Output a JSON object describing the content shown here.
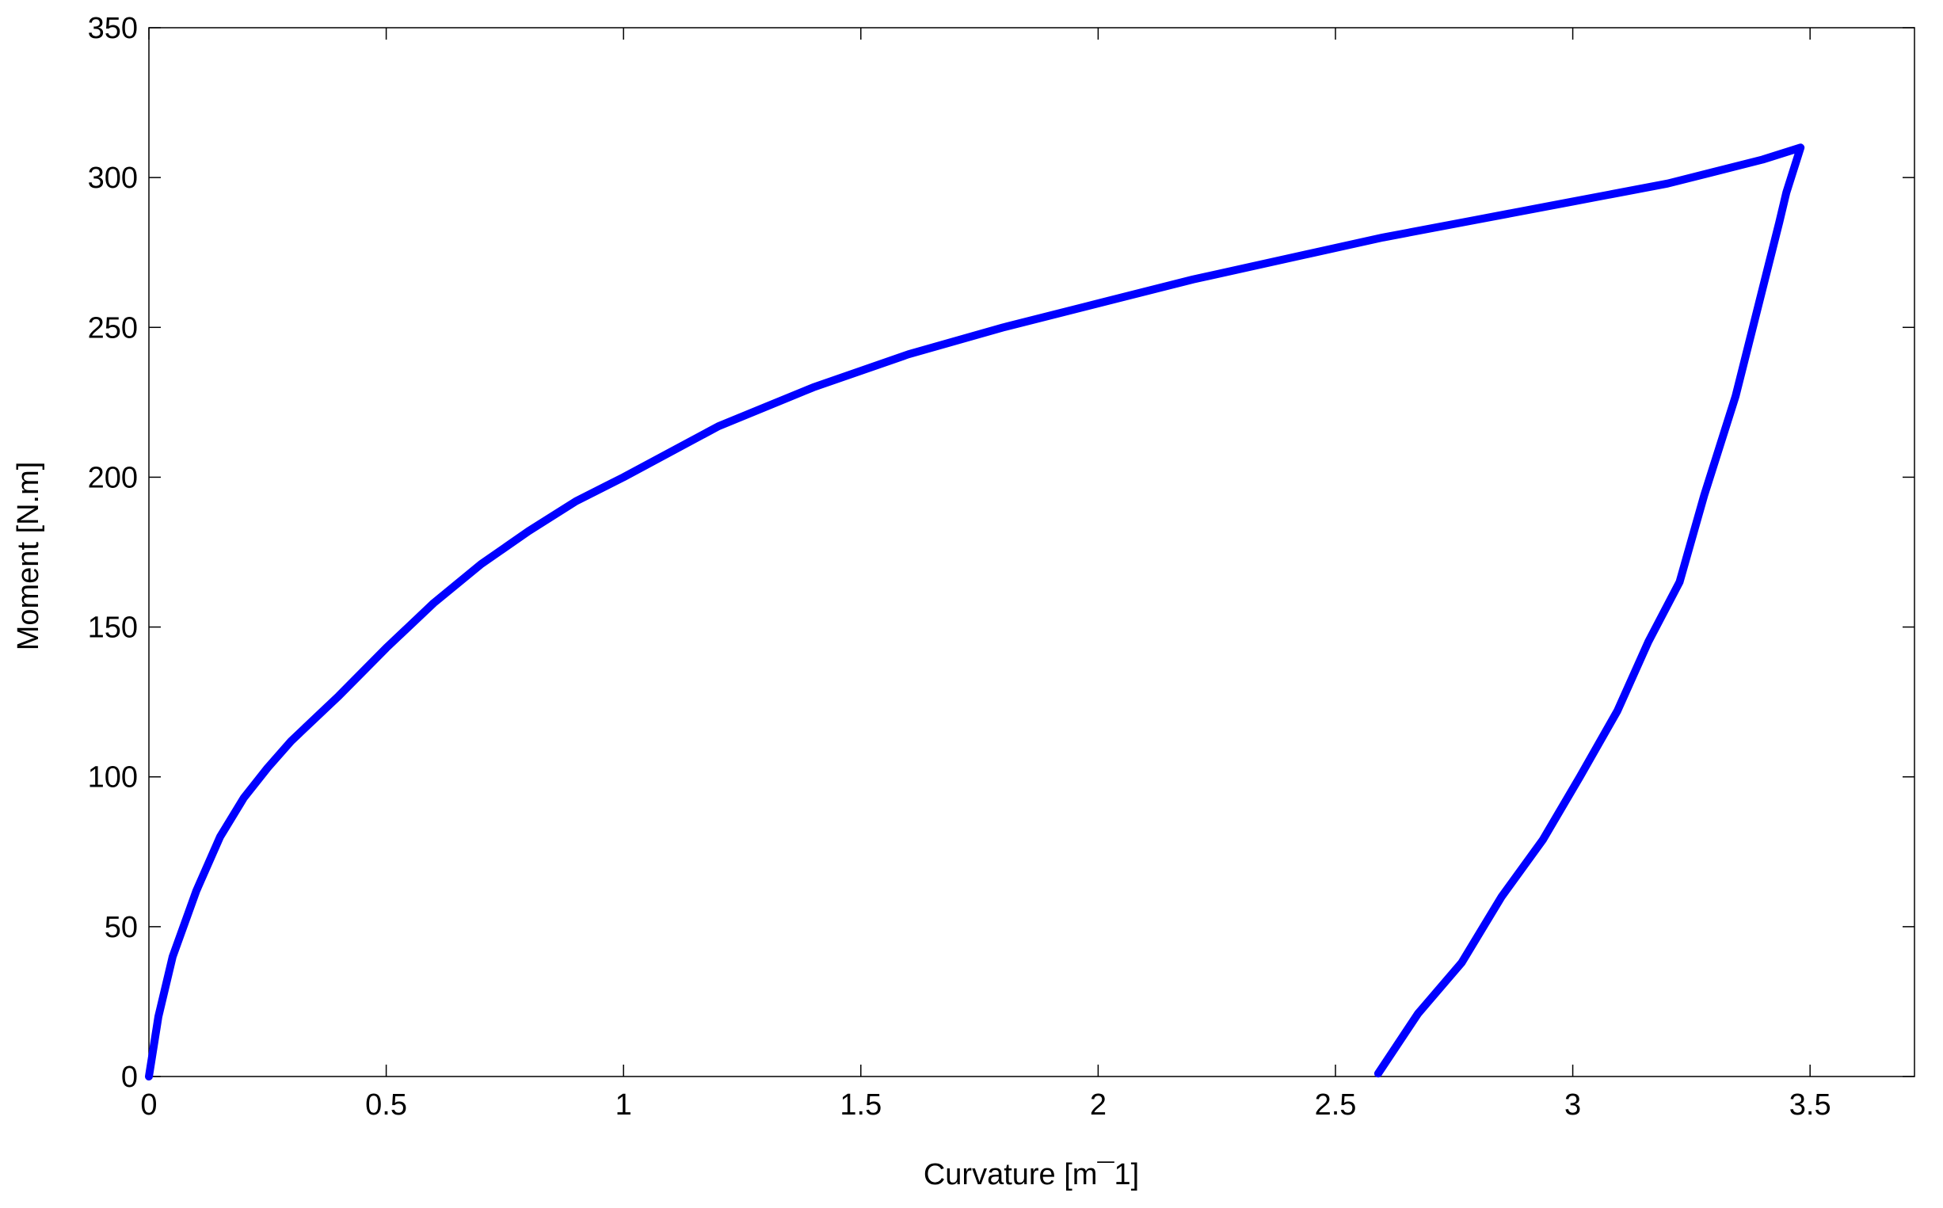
{
  "chart_data": {
    "type": "line",
    "x_label": "Curvature [m¯1]",
    "y_label": "Moment [N.m]",
    "xlim": [
      0,
      3.72
    ],
    "ylim": [
      0,
      350
    ],
    "xticks": [
      0,
      0.5,
      1,
      1.5,
      2,
      2.5,
      3,
      3.5
    ],
    "yticks": [
      0,
      50,
      100,
      150,
      200,
      250,
      300,
      350
    ],
    "series": [
      {
        "color": "#0000ff",
        "x": [
          0,
          0.01,
          0.02,
          0.05,
          0.1,
          0.15,
          0.2,
          0.25,
          0.3,
          0.4,
          0.5,
          0.6,
          0.7,
          0.8,
          0.9,
          1.0,
          1.2,
          1.4,
          1.6,
          1.8,
          2.0,
          2.2,
          2.4,
          2.6,
          2.8,
          3.0,
          3.2,
          3.4,
          3.48,
          3.45,
          3.435,
          3.343,
          3.277,
          3.225,
          3.159,
          3.094,
          3.015,
          2.937,
          2.85,
          2.766,
          2.674,
          2.59
        ],
        "values": [
          0,
          10,
          20,
          40,
          62,
          80,
          93,
          103,
          112,
          127,
          143,
          158,
          171,
          182,
          192,
          200,
          217,
          230,
          241,
          250,
          258,
          266,
          273,
          280,
          286,
          292,
          298,
          306,
          310,
          295,
          285,
          227,
          194,
          165,
          145,
          122,
          100,
          79,
          60,
          38,
          21,
          1
        ]
      }
    ]
  }
}
